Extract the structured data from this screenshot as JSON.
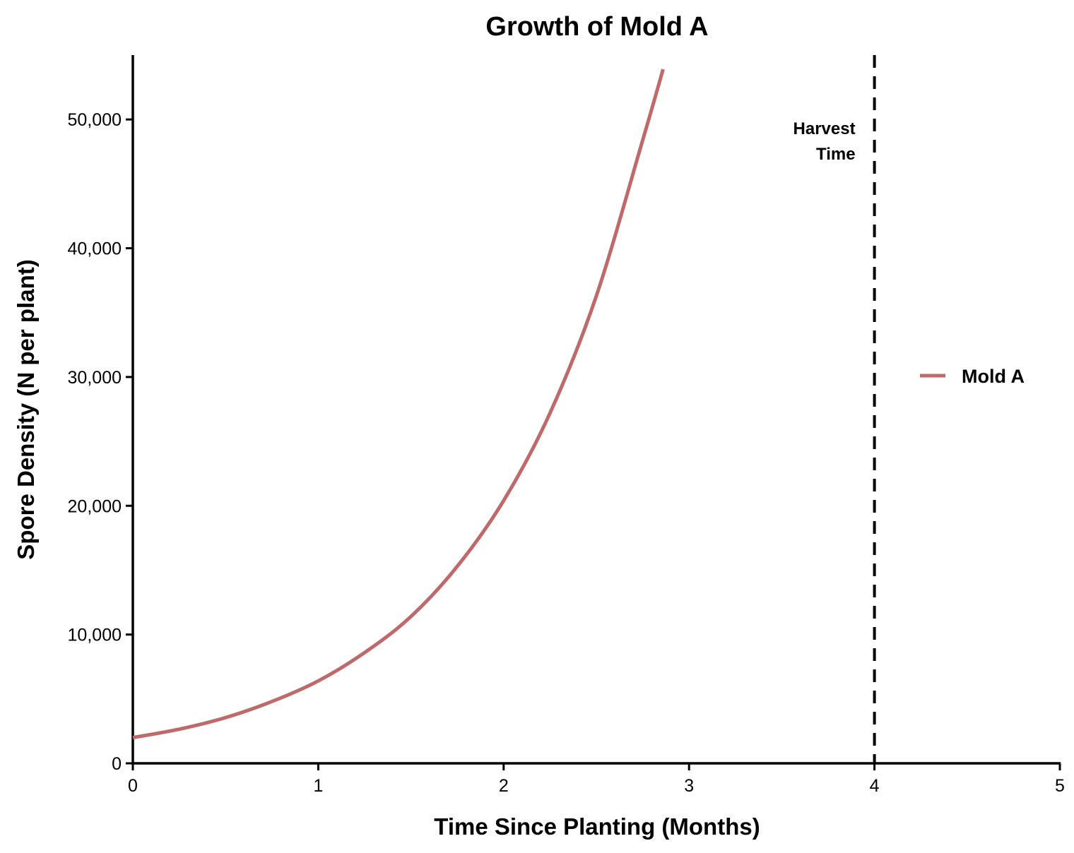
{
  "chart_data": {
    "type": "line",
    "title": "Growth of Mold A",
    "xlabel": "Time Since Planting (Months)",
    "ylabel": "Spore Density (N per plant)",
    "xlim": [
      0,
      5
    ],
    "ylim": [
      0,
      55000
    ],
    "x_ticks": [
      0,
      1,
      2,
      3,
      4,
      5
    ],
    "x_tick_labels": [
      "0",
      "1",
      "2",
      "3",
      "4",
      "5"
    ],
    "y_ticks": [
      0,
      10000,
      20000,
      30000,
      40000,
      50000
    ],
    "y_tick_labels": [
      "0",
      "10,000",
      "20,000",
      "30,000",
      "40,000",
      "50,000"
    ],
    "grid": false,
    "legend_position": "right",
    "series": [
      {
        "name": "Mold A",
        "color": "#c0696b",
        "x": [
          0,
          0.25,
          0.5,
          0.75,
          1.0,
          1.25,
          1.5,
          1.75,
          2.0,
          2.25,
          2.5,
          2.75,
          2.86
        ],
        "y": [
          2000,
          2650,
          3550,
          4800,
          6400,
          8600,
          11400,
          15300,
          20400,
          27200,
          36300,
          48400,
          53900
        ]
      }
    ],
    "reference_lines": [
      {
        "axis": "x",
        "value": 4,
        "style": "dashed",
        "color": "#000000",
        "label_lines": [
          "Harvest",
          "Time"
        ]
      }
    ]
  }
}
